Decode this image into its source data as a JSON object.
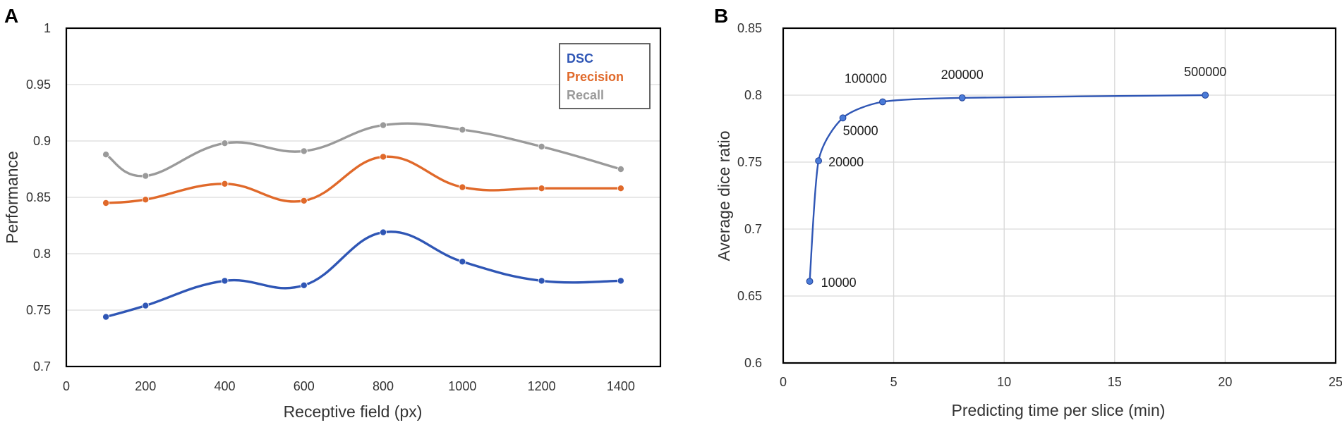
{
  "chart_data": [
    {
      "panel": "A",
      "type": "line",
      "xlabel": "Receptive field (px)",
      "ylabel": "Performance",
      "xlim": [
        0,
        1500
      ],
      "ylim": [
        0.7,
        1
      ],
      "xticks": [
        0,
        200,
        400,
        600,
        800,
        1000,
        1200,
        1400
      ],
      "yticks": [
        0.7,
        0.75,
        0.8,
        0.85,
        0.9,
        0.95,
        1
      ],
      "ytick_labels": [
        "0.7",
        "0.75",
        "0.8",
        "0.85",
        "0.9",
        "0.95",
        "1"
      ],
      "grid": "horizontal",
      "legend_position": "top-right",
      "x": [
        100,
        200,
        400,
        600,
        800,
        1000,
        1200,
        1400
      ],
      "series": [
        {
          "name": "DSC",
          "color": "#2f56b5",
          "values": [
            0.744,
            0.754,
            0.776,
            0.772,
            0.819,
            0.793,
            0.776,
            0.776
          ]
        },
        {
          "name": "Precision",
          "color": "#e0692a",
          "values": [
            0.845,
            0.848,
            0.862,
            0.847,
            0.886,
            0.859,
            0.858,
            0.858
          ]
        },
        {
          "name": "Recall",
          "color": "#9a9a9a",
          "values": [
            0.888,
            0.869,
            0.898,
            0.891,
            0.914,
            0.91,
            0.895,
            0.875
          ]
        }
      ]
    },
    {
      "panel": "B",
      "type": "line",
      "xlabel": "Predicting time per slice (min)",
      "ylabel": "Average dice ratio",
      "xlim": [
        0,
        25
      ],
      "ylim": [
        0.6,
        0.85
      ],
      "xticks": [
        0,
        5,
        10,
        15,
        20,
        25
      ],
      "yticks": [
        0.6,
        0.65,
        0.7,
        0.75,
        0.8,
        0.85
      ],
      "ytick_labels": [
        "0.6",
        "0.65",
        "0.7",
        "0.75",
        "0.8",
        "0.85"
      ],
      "grid": "both",
      "series": [
        {
          "name": "Average dice ratio",
          "color": "#2f56b5",
          "x": [
            1.2,
            1.6,
            2.7,
            4.5,
            8.1,
            19.1
          ],
          "values": [
            0.661,
            0.751,
            0.783,
            0.795,
            0.798,
            0.8
          ],
          "point_labels": [
            "10000",
            "20000",
            "50000",
            "100000",
            "200000",
            "500000"
          ]
        }
      ]
    }
  ]
}
